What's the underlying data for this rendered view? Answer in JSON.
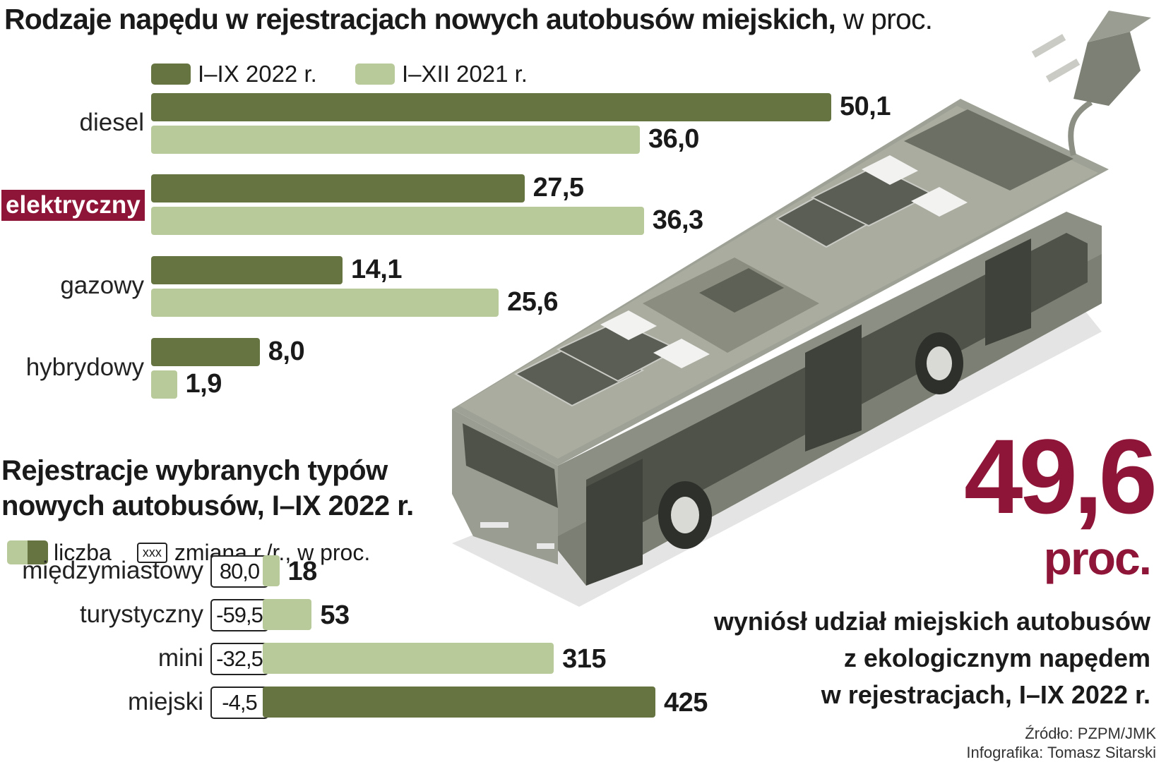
{
  "chart_data": [
    {
      "type": "bar",
      "title": "Rodzaje napędu w rejestracjach nowych autobusów miejskich,",
      "title_suffix": "w proc.",
      "orientation": "horizontal",
      "categories": [
        "diesel",
        "elektryczny",
        "gazowy",
        "hybrydowy"
      ],
      "highlighted_category": "elektryczny",
      "series": [
        {
          "name": "I–IX 2022 r.",
          "color": "#667442",
          "values": [
            50.1,
            27.5,
            14.1,
            8.0
          ],
          "labels": [
            "50,1",
            "27,5",
            "14,1",
            "8,0"
          ]
        },
        {
          "name": "I–XII 2021 r.",
          "color": "#b8c99a",
          "values": [
            36.0,
            36.3,
            25.6,
            1.9
          ],
          "labels": [
            "36,0",
            "36,3",
            "25,6",
            "1,9"
          ]
        }
      ],
      "xlim": [
        0,
        50.1
      ],
      "grid": false,
      "legend": "top"
    },
    {
      "type": "bar",
      "title": "Rejestracje wybranych typów nowych autobusów, I–IX 2022 r.",
      "orientation": "horizontal",
      "categories": [
        "międzymiastowy",
        "turystyczny",
        "mini",
        "miejski"
      ],
      "values": [
        18,
        53,
        315,
        425
      ],
      "labels": [
        "18",
        "53",
        "315",
        "425"
      ],
      "change_yoy": [
        "80,0",
        "-59,5",
        "-32,5",
        "-4,5"
      ],
      "colors": [
        "#b8c99a",
        "#b8c99a",
        "#b8c99a",
        "#667442"
      ],
      "legend": {
        "count_label": "liczba",
        "box_sample": "xxx",
        "change_label": "zmiana r./r., w proc."
      },
      "xlim": [
        0,
        425
      ],
      "grid": false
    }
  ],
  "highlight": {
    "value": "49,6",
    "unit": "proc.",
    "caption_lines": [
      "wyniósł udział miejskich autobusów",
      "z ekologicznym napędem",
      "w rejestracjach, I–IX 2022 r."
    ]
  },
  "footer": {
    "source": "Źródło: PZPM/JMK",
    "credit": "Infografika: Tomasz Sitarski"
  },
  "colors": {
    "dark_green": "#667442",
    "light_green": "#b8c99a",
    "accent": "#8e1538"
  },
  "icons": [
    "bus-illustration",
    "plug-icon",
    "solar-panel-icon"
  ]
}
